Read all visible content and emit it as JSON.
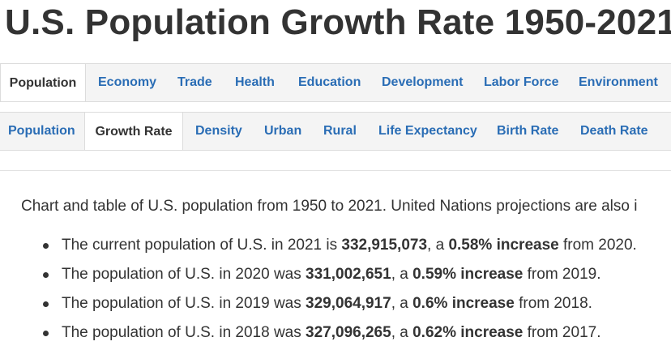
{
  "title": "U.S. Population Growth Rate 1950-2021",
  "primary_tabs": [
    {
      "label": "Population",
      "active": true
    },
    {
      "label": "Economy",
      "active": false
    },
    {
      "label": "Trade",
      "active": false
    },
    {
      "label": "Health",
      "active": false
    },
    {
      "label": "Education",
      "active": false
    },
    {
      "label": "Development",
      "active": false
    },
    {
      "label": "Labor Force",
      "active": false
    },
    {
      "label": "Environment",
      "active": false
    }
  ],
  "secondary_tabs": [
    {
      "label": "Population",
      "active": false
    },
    {
      "label": "Growth Rate",
      "active": true
    },
    {
      "label": "Density",
      "active": false
    },
    {
      "label": "Urban",
      "active": false
    },
    {
      "label": "Rural",
      "active": false
    },
    {
      "label": "Life Expectancy",
      "active": false
    },
    {
      "label": "Birth Rate",
      "active": false
    },
    {
      "label": "Death Rate",
      "active": false
    }
  ],
  "intro": "Chart and table of U.S. population from 1950 to 2021. United Nations projections are also i",
  "facts": [
    {
      "pre": "The current population of U.S. in 2021 is ",
      "value": "332,915,073",
      "mid": ", a ",
      "change": "0.58% increase",
      "post": " from 2020."
    },
    {
      "pre": "The population of U.S. in 2020 was ",
      "value": "331,002,651",
      "mid": ", a ",
      "change": "0.59% increase",
      "post": " from 2019."
    },
    {
      "pre": "The population of U.S. in 2019 was ",
      "value": "329,064,917",
      "mid": ", a ",
      "change": "0.6% increase",
      "post": " from 2018."
    },
    {
      "pre": "The population of U.S. in 2018 was ",
      "value": "327,096,265",
      "mid": ", a ",
      "change": "0.62% increase",
      "post": " from 2017."
    }
  ],
  "colors": {
    "link": "#2a6db5",
    "text": "#333333",
    "tab_bar": "#f4f4f4",
    "border": "#dcdcdc"
  }
}
